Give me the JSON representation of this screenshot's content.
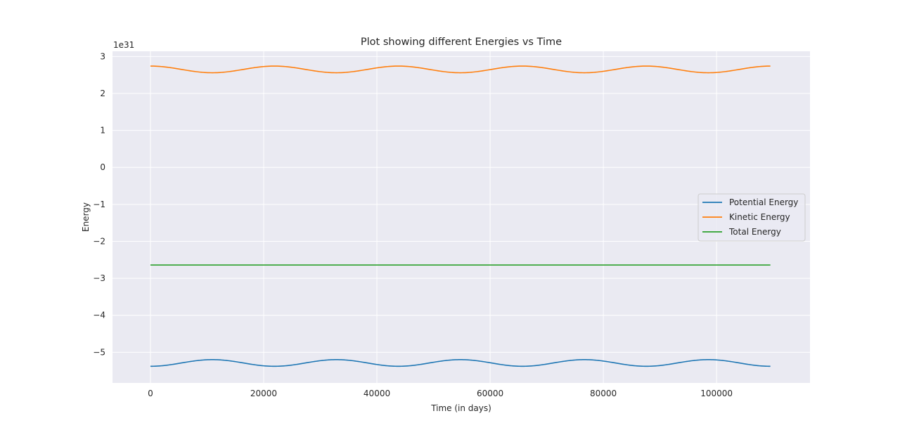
{
  "chart_data": {
    "type": "line",
    "title": "Plot showing different Energies vs Time",
    "xlabel": "Time (in days)",
    "ylabel": "Energy",
    "y_offset_label": "1e31",
    "y_scale": 1e+31,
    "xlim": [
      -6700,
      116500
    ],
    "ylim": [
      -5.83,
      3.14
    ],
    "x_ticks": [
      0,
      20000,
      40000,
      60000,
      80000,
      100000
    ],
    "x_tick_labels": [
      "0",
      "20000",
      "40000",
      "60000",
      "80000",
      "100000"
    ],
    "y_ticks": [
      3,
      2,
      1,
      0,
      -1,
      -2,
      -3,
      -4,
      -5
    ],
    "y_tick_labels": [
      "3",
      "2",
      "1",
      "0",
      "−1",
      "−2",
      "−3",
      "−4",
      "−5"
    ],
    "grid": true,
    "background": "#eaeaf2",
    "legend_position": "center-right",
    "x_range": [
      0,
      109500
    ],
    "series": [
      {
        "name": "Potential Energy",
        "color": "#1f77b4",
        "model": "oscillation",
        "mean": -5.29,
        "amplitude": 0.09,
        "period": 21900,
        "phase_sign": -1
      },
      {
        "name": "Kinetic Energy",
        "color": "#ff7f0e",
        "model": "oscillation",
        "mean": 2.65,
        "amplitude": 0.09,
        "period": 21900,
        "phase_sign": 1
      },
      {
        "name": "Total Energy",
        "color": "#2ca02c",
        "model": "constant",
        "mean": -2.64,
        "amplitude": 0,
        "period": 21900,
        "phase_sign": 1
      }
    ]
  }
}
